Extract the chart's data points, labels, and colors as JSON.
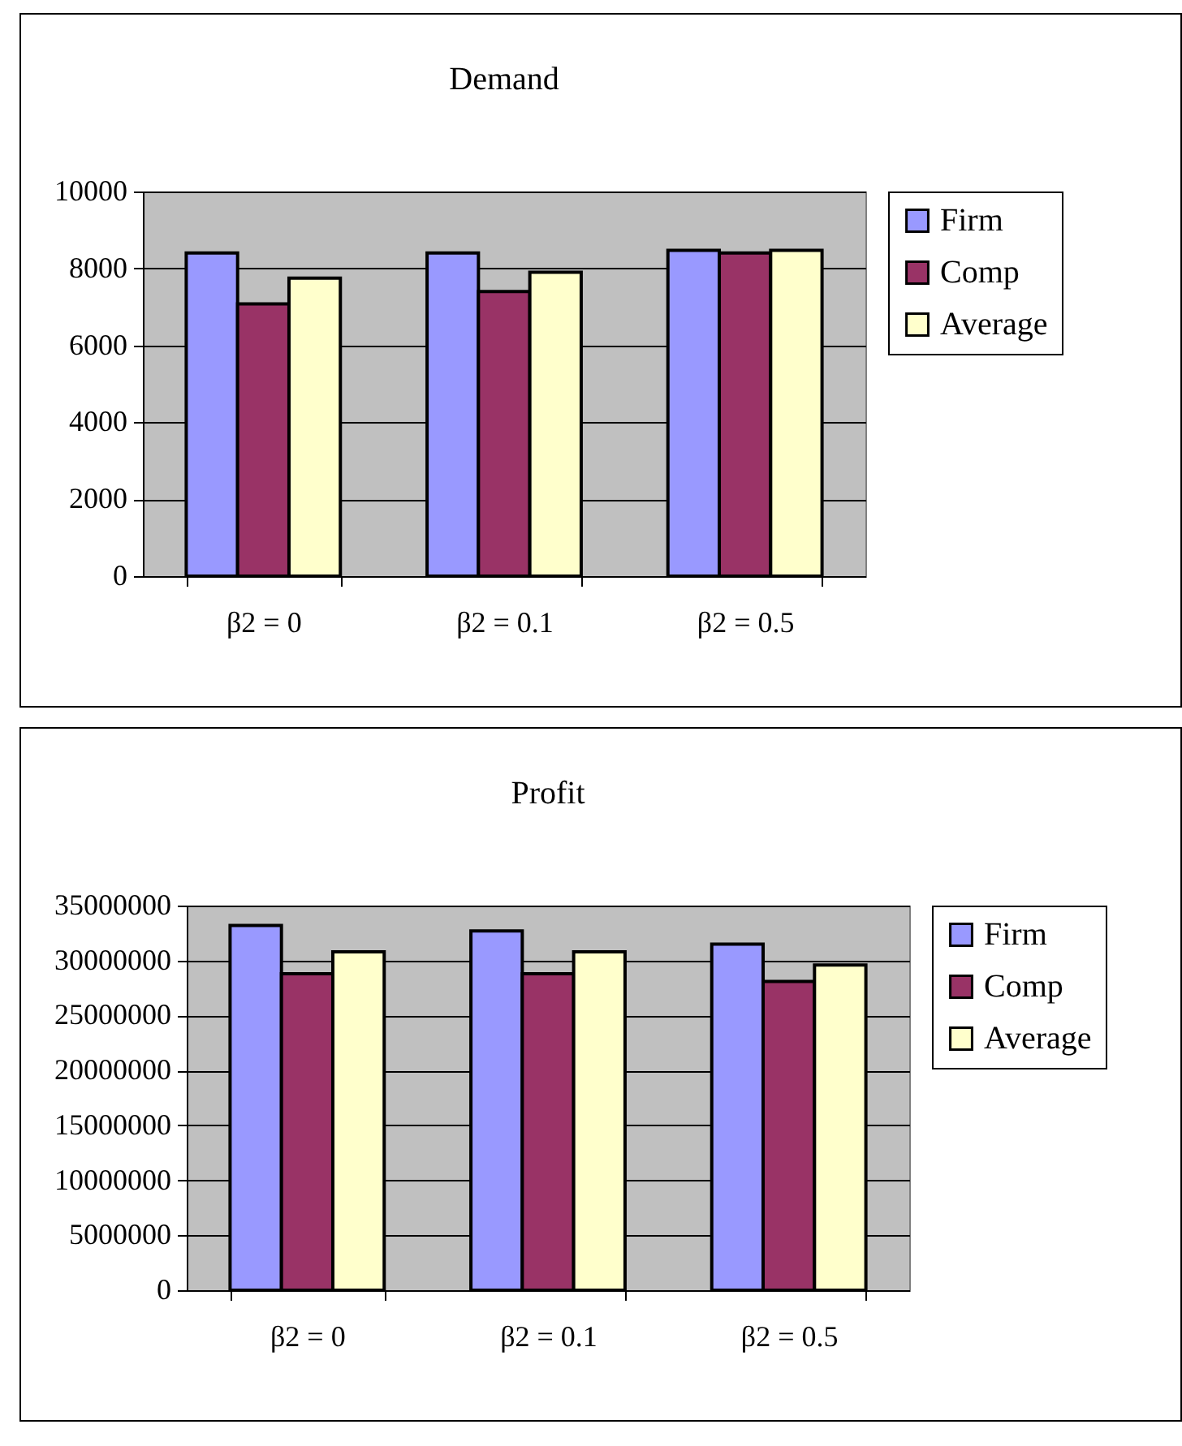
{
  "chart_data": [
    {
      "type": "bar",
      "title": "Demand",
      "categories": [
        "β2 = 0",
        "β2 = 0.1",
        "β2 = 0.5"
      ],
      "ylim": [
        0,
        10000
      ],
      "yticks": [
        0,
        2000,
        4000,
        6000,
        8000,
        10000
      ],
      "grid": "y",
      "legend": "right",
      "series": [
        {
          "name": "Firm",
          "color": "#9999ff",
          "values": [
            8400,
            8400,
            8470
          ]
        },
        {
          "name": "Comp",
          "color": "#993366",
          "values": [
            7080,
            7400,
            8400
          ]
        },
        {
          "name": "Average",
          "color": "#ffffcc",
          "values": [
            7750,
            7900,
            8470
          ]
        }
      ]
    },
    {
      "type": "bar",
      "title": "Profit",
      "categories": [
        "β2 = 0",
        "β2 = 0.1",
        "β2 = 0.5"
      ],
      "ylim": [
        0,
        35000000
      ],
      "yticks": [
        0,
        5000000,
        10000000,
        15000000,
        20000000,
        25000000,
        30000000,
        35000000
      ],
      "grid": "y",
      "legend": "right",
      "series": [
        {
          "name": "Firm",
          "color": "#9999ff",
          "values": [
            33200000,
            32700000,
            31500000
          ]
        },
        {
          "name": "Comp",
          "color": "#993366",
          "values": [
            28800000,
            28800000,
            28100000
          ]
        },
        {
          "name": "Average",
          "color": "#ffffcc",
          "values": [
            30800000,
            30800000,
            29600000
          ]
        }
      ]
    }
  ]
}
